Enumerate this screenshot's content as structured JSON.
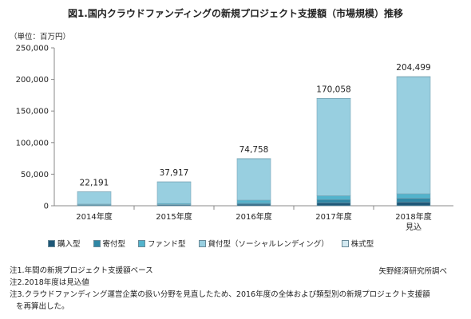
{
  "chart_data": {
    "type": "bar",
    "title": "図1.国内クラウドファンディングの新規プロジェクト支援額（市場規模）推移",
    "unit_label": "（単位：百万円）",
    "categories": [
      "2014年度",
      "2015年度",
      "2016年度",
      "2017年度",
      "2018年度"
    ],
    "category_sublabels": [
      "",
      "",
      "",
      "",
      "見込"
    ],
    "totals": [
      22191,
      37917,
      74758,
      170058,
      204499
    ],
    "total_labels": [
      "22,191",
      "37,917",
      "74,758",
      "170,058",
      "204,499"
    ],
    "series": [
      {
        "name": "購入型",
        "color": "#1f5878",
        "values": [
          1200,
          1500,
          2600,
          4900,
          6000
        ]
      },
      {
        "name": "寄付型",
        "color": "#2f87a5",
        "values": [
          400,
          600,
          1800,
          5000,
          6000
        ]
      },
      {
        "name": "ファンド型",
        "color": "#53b3cc",
        "values": [
          1000,
          1500,
          4500,
          6000,
          7000
        ]
      },
      {
        "name": "貸付型（ソーシャルレンディング）",
        "color": "#98cfe0",
        "values": [
          19400,
          34100,
          65400,
          154000,
          185000
        ]
      },
      {
        "name": "株式型",
        "color": "#d3e9f1",
        "values": [
          191,
          217,
          458,
          158,
          499
        ]
      }
    ],
    "ylim": [
      0,
      250000
    ],
    "yticks": [
      0,
      50000,
      100000,
      150000,
      200000,
      250000
    ],
    "ytick_labels": [
      "0",
      "50,000",
      "100,000",
      "150,000",
      "200,000",
      "250,000"
    ],
    "gridlines": false,
    "legend_position": "bottom"
  },
  "source": "矢野経済研究所調べ",
  "notes": [
    "注1.年間の新規プロジェクト支援額ベース",
    "注2.2018年度は見込値",
    "注3.クラウドファンディング運営企業の扱い分野を見直したため、2016年度の全体および類型別の新規プロジェクト支援額",
    "を再算出した。"
  ]
}
